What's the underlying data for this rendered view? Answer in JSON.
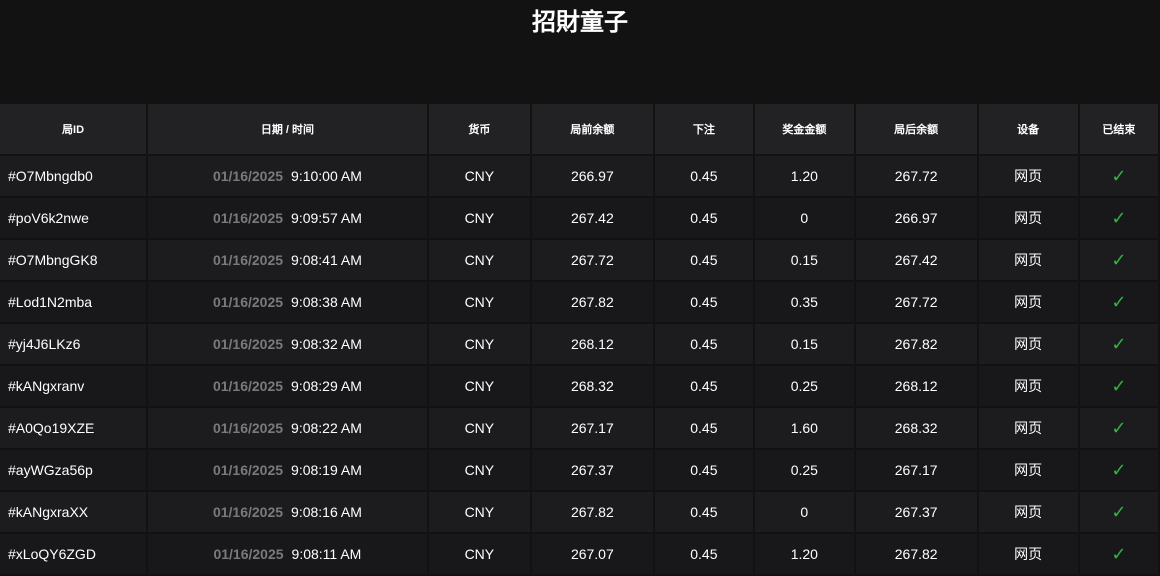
{
  "title": "招財童子",
  "columns": [
    "局ID",
    "日期 / 时间",
    "货币",
    "局前余额",
    "下注",
    "奖金金额",
    "局后余额",
    "设备",
    "已结束"
  ],
  "colors": {
    "check": "#2db83d",
    "header_bg": "#222224"
  },
  "rows": [
    {
      "id": "#O7Mbngdb0",
      "date": "01/16/2025",
      "time": "9:10:00 AM",
      "currency": "CNY",
      "before": "266.97",
      "bet": "0.45",
      "win": "1.20",
      "after": "267.72",
      "device": "网页",
      "done": "✓"
    },
    {
      "id": "#poV6k2nwe",
      "date": "01/16/2025",
      "time": "9:09:57 AM",
      "currency": "CNY",
      "before": "267.42",
      "bet": "0.45",
      "win": "0",
      "after": "266.97",
      "device": "网页",
      "done": "✓"
    },
    {
      "id": "#O7MbngGK8",
      "date": "01/16/2025",
      "time": "9:08:41 AM",
      "currency": "CNY",
      "before": "267.72",
      "bet": "0.45",
      "win": "0.15",
      "after": "267.42",
      "device": "网页",
      "done": "✓"
    },
    {
      "id": "#Lod1N2mba",
      "date": "01/16/2025",
      "time": "9:08:38 AM",
      "currency": "CNY",
      "before": "267.82",
      "bet": "0.45",
      "win": "0.35",
      "after": "267.72",
      "device": "网页",
      "done": "✓"
    },
    {
      "id": "#yj4J6LKz6",
      "date": "01/16/2025",
      "time": "9:08:32 AM",
      "currency": "CNY",
      "before": "268.12",
      "bet": "0.45",
      "win": "0.15",
      "after": "267.82",
      "device": "网页",
      "done": "✓"
    },
    {
      "id": "#kANgxranv",
      "date": "01/16/2025",
      "time": "9:08:29 AM",
      "currency": "CNY",
      "before": "268.32",
      "bet": "0.45",
      "win": "0.25",
      "after": "268.12",
      "device": "网页",
      "done": "✓"
    },
    {
      "id": "#A0Qo19XZE",
      "date": "01/16/2025",
      "time": "9:08:22 AM",
      "currency": "CNY",
      "before": "267.17",
      "bet": "0.45",
      "win": "1.60",
      "after": "268.32",
      "device": "网页",
      "done": "✓"
    },
    {
      "id": "#ayWGza56p",
      "date": "01/16/2025",
      "time": "9:08:19 AM",
      "currency": "CNY",
      "before": "267.37",
      "bet": "0.45",
      "win": "0.25",
      "after": "267.17",
      "device": "网页",
      "done": "✓"
    },
    {
      "id": "#kANgxraXX",
      "date": "01/16/2025",
      "time": "9:08:16 AM",
      "currency": "CNY",
      "before": "267.82",
      "bet": "0.45",
      "win": "0",
      "after": "267.37",
      "device": "网页",
      "done": "✓"
    },
    {
      "id": "#xLoQY6ZGD",
      "date": "01/16/2025",
      "time": "9:08:11 AM",
      "currency": "CNY",
      "before": "267.07",
      "bet": "0.45",
      "win": "1.20",
      "after": "267.82",
      "device": "网页",
      "done": "✓"
    }
  ]
}
